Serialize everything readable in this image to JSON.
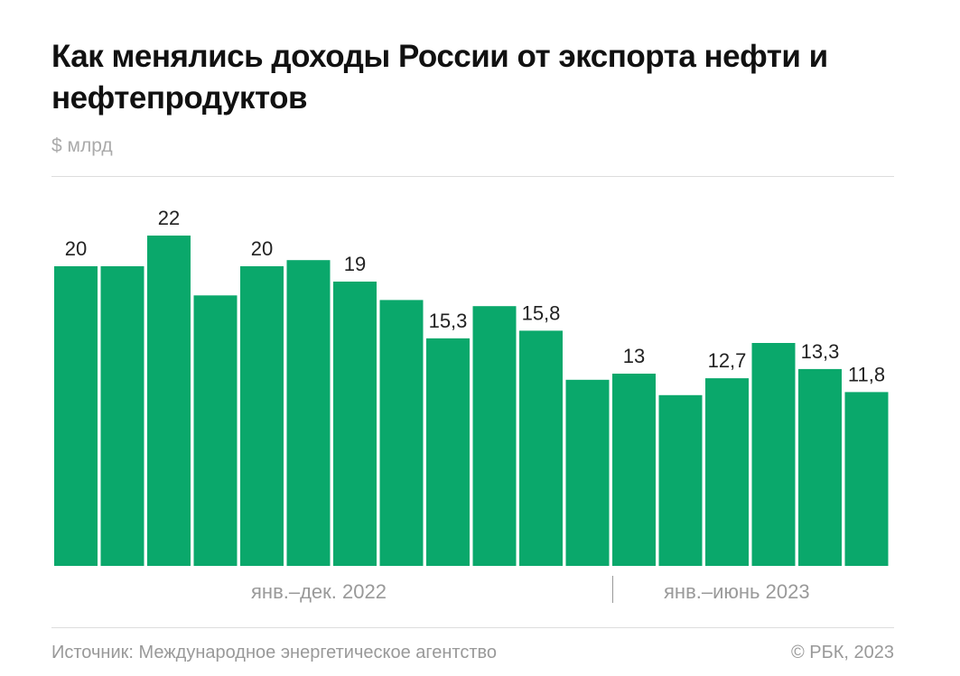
{
  "title": "Как менялись доходы России от экспорта нефти и нефтепродуктов",
  "unit": "$ млрд",
  "source": "Источник: Международное энергетическое агентство",
  "copyright": "© РБК, 2023",
  "chart_data": {
    "type": "bar",
    "title": "Как менялись доходы России от экспорта нефти и нефтепродуктов",
    "ylabel": "$ млрд",
    "group_labels": [
      "янв.–дек. 2022",
      "янв.–июнь 2023"
    ],
    "group_sizes": [
      12,
      6
    ],
    "values": [
      20,
      20,
      22,
      18.1,
      20,
      20.4,
      19,
      17.8,
      15.3,
      17.4,
      15.8,
      12.6,
      13,
      11.6,
      12.7,
      15.0,
      13.3,
      11.8
    ],
    "data_labels": [
      "20",
      "",
      "22",
      "",
      "20",
      "",
      "19",
      "",
      "15,3",
      "",
      "15,8",
      "",
      "13",
      "",
      "12,7",
      "",
      "13,3",
      "11,8"
    ],
    "color": "#0aa86b",
    "grid": false
  }
}
